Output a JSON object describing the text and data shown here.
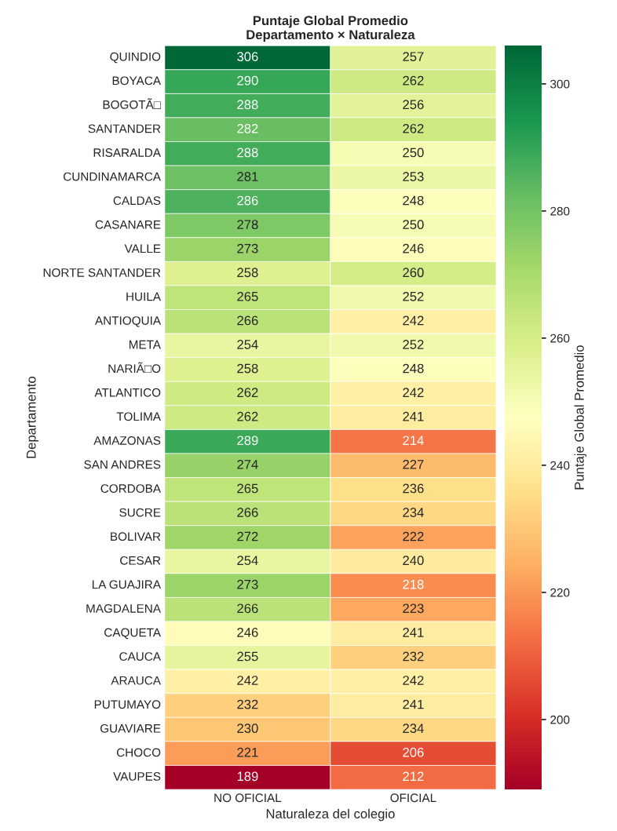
{
  "chart_data": {
    "type": "heatmap",
    "title": "Puntaje Global Promedio\nDepartamento × Naturaleza",
    "xlabel": "Naturaleza del colegio",
    "ylabel": "Departamento",
    "clabel": "Puntaje Global Promedio",
    "categories": [
      "NO OFICIAL",
      "OFICIAL"
    ],
    "y_categories": [
      "QUINDIO",
      "BOYACA",
      "BOGOTÃ□",
      "SANTANDER",
      "RISARALDA",
      "CUNDINAMARCA",
      "CALDAS",
      "CASANARE",
      "VALLE",
      "NORTE SANTANDER",
      "HUILA",
      "ANTIOQUIA",
      "META",
      "NARIÃ□O",
      "ATLANTICO",
      "TOLIMA",
      "AMAZONAS",
      "SAN ANDRES",
      "CORDOBA",
      "SUCRE",
      "BOLIVAR",
      "CESAR",
      "LA GUAJIRA",
      "MAGDALENA",
      "CAQUETA",
      "CAUCA",
      "ARAUCA",
      "PUTUMAYO",
      "GUAVIARE",
      "CHOCO",
      "VAUPES"
    ],
    "cells": [
      [
        306,
        257
      ],
      [
        290,
        262
      ],
      [
        288,
        256
      ],
      [
        282,
        262
      ],
      [
        288,
        250
      ],
      [
        281,
        253
      ],
      [
        286,
        248
      ],
      [
        278,
        250
      ],
      [
        273,
        246
      ],
      [
        258,
        260
      ],
      [
        265,
        252
      ],
      [
        266,
        242
      ],
      [
        254,
        252
      ],
      [
        258,
        248
      ],
      [
        262,
        242
      ],
      [
        262,
        241
      ],
      [
        289,
        214
      ],
      [
        274,
        227
      ],
      [
        265,
        236
      ],
      [
        266,
        234
      ],
      [
        272,
        222
      ],
      [
        254,
        240
      ],
      [
        273,
        218
      ],
      [
        266,
        223
      ],
      [
        246,
        241
      ],
      [
        255,
        232
      ],
      [
        242,
        242
      ],
      [
        232,
        241
      ],
      [
        230,
        234
      ],
      [
        221,
        206
      ],
      [
        189,
        212
      ]
    ],
    "clim": [
      189,
      306
    ],
    "cticks": [
      200,
      220,
      240,
      260,
      280,
      300
    ],
    "data_labels": true
  }
}
